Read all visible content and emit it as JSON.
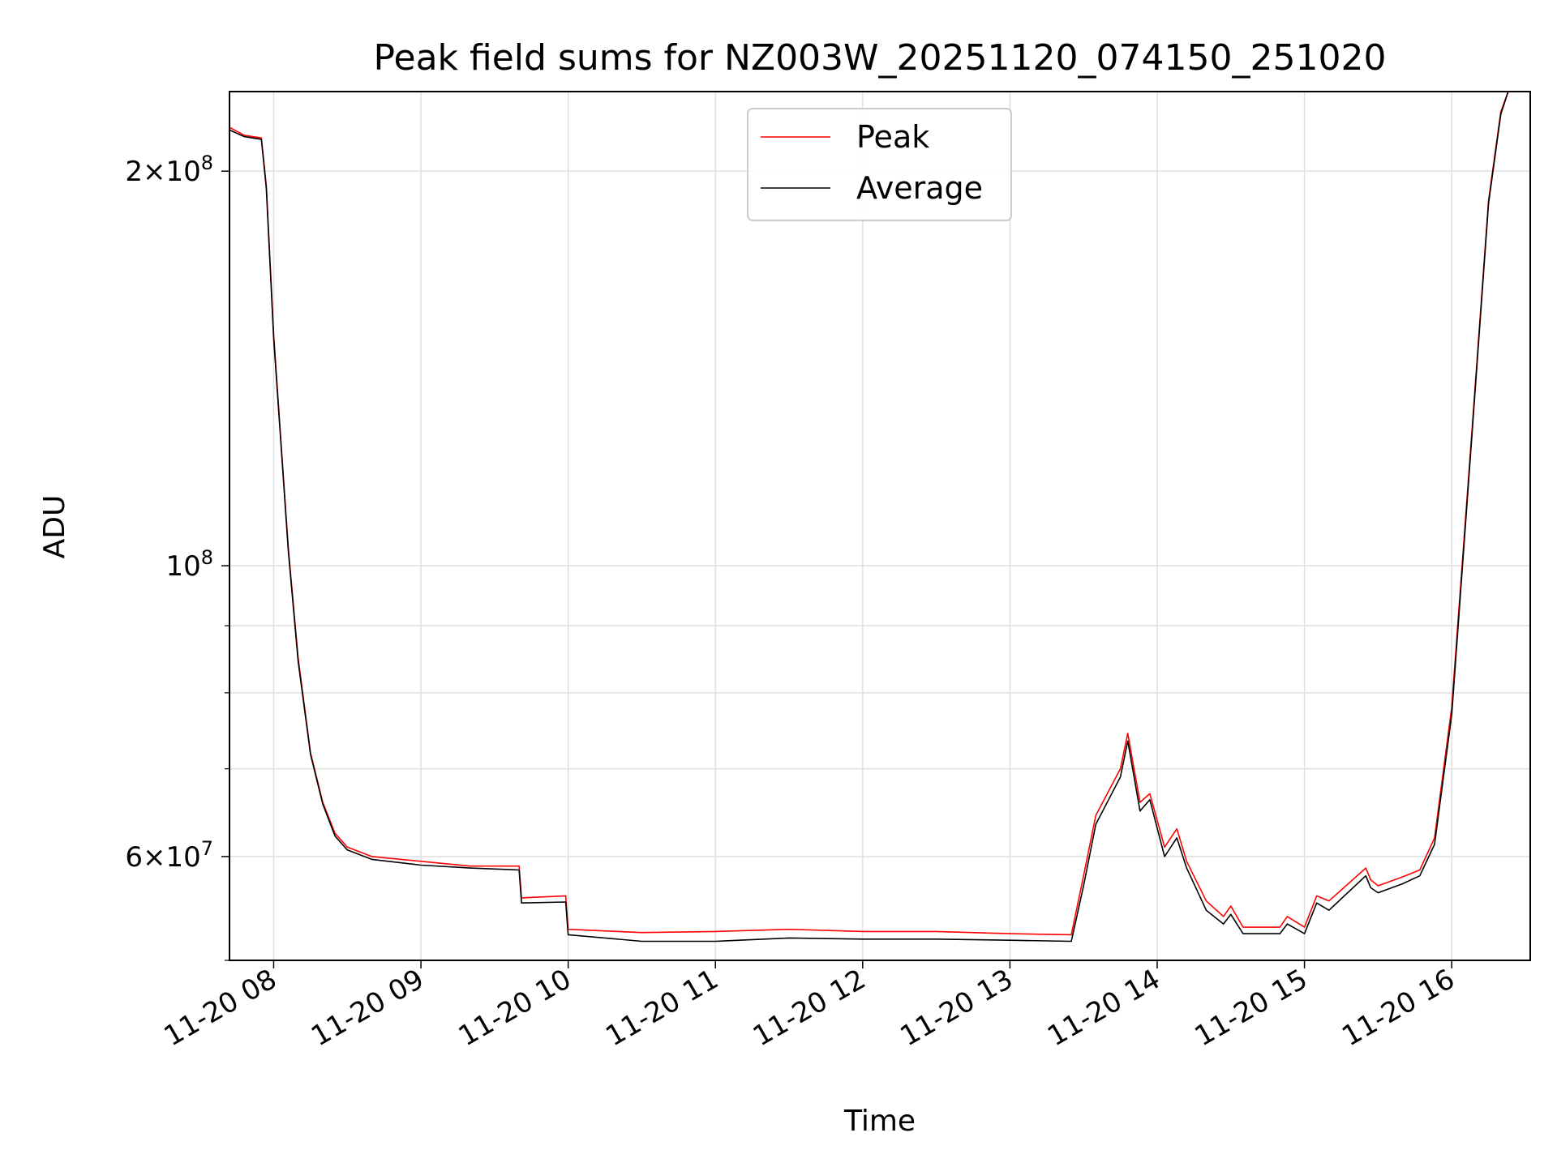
{
  "chart_data": {
    "type": "line",
    "title": "Peak field sums for NZ003W_20251120_074150_251020",
    "xlabel": "Time",
    "ylabel": "ADU",
    "y_scale": "log",
    "ylim": [
      50000000,
      230000000
    ],
    "xlim": [
      "2025-11-20 07:42",
      "2025-11-20 16:32"
    ],
    "grid": true,
    "legend_position": "top-center",
    "x_tick_labels": [
      "11-20 08",
      "11-20 09",
      "11-20 10",
      "11-20 11",
      "11-20 12",
      "11-20 13",
      "11-20 14",
      "11-20 15",
      "11-20 16"
    ],
    "x_ticks": [
      "2025-11-20 08:00",
      "2025-11-20 09:00",
      "2025-11-20 10:00",
      "2025-11-20 11:00",
      "2025-11-20 12:00",
      "2025-11-20 13:00",
      "2025-11-20 14:00",
      "2025-11-20 15:00",
      "2025-11-20 16:00"
    ],
    "y_major_ticks": [
      {
        "value": 200000000,
        "mantissa": "2",
        "exponent": "8"
      },
      {
        "value": 100000000,
        "mantissa": "",
        "exponent": "8"
      },
      {
        "value": 60000000,
        "mantissa": "6",
        "exponent": "7"
      }
    ],
    "y_minor_ticks": [
      50000000,
      70000000,
      80000000,
      90000000
    ],
    "series": [
      {
        "name": "Peak",
        "color": "#ff0000",
        "x": [
          "2025-11-20 07:42",
          "2025-11-20 07:48",
          "2025-11-20 07:55",
          "2025-11-20 07:57",
          "2025-11-20 08:00",
          "2025-11-20 08:03",
          "2025-11-20 08:06",
          "2025-11-20 08:10",
          "2025-11-20 08:15",
          "2025-11-20 08:20",
          "2025-11-20 08:25",
          "2025-11-20 08:30",
          "2025-11-20 08:40",
          "2025-11-20 09:00",
          "2025-11-20 09:20",
          "2025-11-20 09:40",
          "2025-11-20 09:41",
          "2025-11-20 09:59",
          "2025-11-20 10:00",
          "2025-11-20 10:30",
          "2025-11-20 11:00",
          "2025-11-20 11:30",
          "2025-11-20 12:00",
          "2025-11-20 12:30",
          "2025-11-20 13:00",
          "2025-11-20 13:25",
          "2025-11-20 13:30",
          "2025-11-20 13:35",
          "2025-11-20 13:45",
          "2025-11-20 13:48",
          "2025-11-20 13:50",
          "2025-11-20 13:53",
          "2025-11-20 13:57",
          "2025-11-20 14:03",
          "2025-11-20 14:08",
          "2025-11-20 14:12",
          "2025-11-20 14:20",
          "2025-11-20 14:27",
          "2025-11-20 14:30",
          "2025-11-20 14:35",
          "2025-11-20 14:50",
          "2025-11-20 14:53",
          "2025-11-20 15:00",
          "2025-11-20 15:05",
          "2025-11-20 15:10",
          "2025-11-20 15:25",
          "2025-11-20 15:27",
          "2025-11-20 15:30",
          "2025-11-20 15:40",
          "2025-11-20 15:47",
          "2025-11-20 15:53",
          "2025-11-20 16:00",
          "2025-11-20 16:08",
          "2025-11-20 16:15",
          "2025-11-20 16:20",
          "2025-11-20 16:23"
        ],
        "y": [
          216000000,
          213000000,
          212000000,
          195000000,
          150000000,
          124000000,
          103000000,
          85000000,
          72000000,
          66000000,
          62500000,
          61000000,
          60000000,
          59500000,
          59000000,
          59000000,
          55800000,
          56000000,
          52800000,
          52500000,
          52600000,
          52800000,
          52600000,
          52600000,
          52400000,
          52300000,
          58000000,
          64500000,
          70000000,
          74500000,
          71000000,
          66000000,
          67000000,
          61000000,
          63000000,
          59500000,
          55500000,
          54000000,
          55000000,
          53000000,
          53000000,
          54000000,
          53000000,
          56000000,
          55500000,
          58800000,
          57600000,
          57000000,
          57900000,
          58600000,
          62000000,
          78000000,
          125000000,
          190000000,
          222000000,
          230000000
        ]
      },
      {
        "name": "Average",
        "color": "#000000",
        "x": [
          "2025-11-20 07:42",
          "2025-11-20 07:48",
          "2025-11-20 07:55",
          "2025-11-20 07:57",
          "2025-11-20 08:00",
          "2025-11-20 08:03",
          "2025-11-20 08:06",
          "2025-11-20 08:10",
          "2025-11-20 08:15",
          "2025-11-20 08:20",
          "2025-11-20 08:25",
          "2025-11-20 08:30",
          "2025-11-20 08:40",
          "2025-11-20 09:00",
          "2025-11-20 09:20",
          "2025-11-20 09:40",
          "2025-11-20 09:41",
          "2025-11-20 09:59",
          "2025-11-20 10:00",
          "2025-11-20 10:30",
          "2025-11-20 11:00",
          "2025-11-20 11:30",
          "2025-11-20 12:00",
          "2025-11-20 12:30",
          "2025-11-20 13:00",
          "2025-11-20 13:25",
          "2025-11-20 13:30",
          "2025-11-20 13:35",
          "2025-11-20 13:45",
          "2025-11-20 13:48",
          "2025-11-20 13:50",
          "2025-11-20 13:53",
          "2025-11-20 13:57",
          "2025-11-20 14:03",
          "2025-11-20 14:08",
          "2025-11-20 14:12",
          "2025-11-20 14:20",
          "2025-11-20 14:27",
          "2025-11-20 14:30",
          "2025-11-20 14:35",
          "2025-11-20 14:50",
          "2025-11-20 14:53",
          "2025-11-20 15:00",
          "2025-11-20 15:05",
          "2025-11-20 15:10",
          "2025-11-20 15:25",
          "2025-11-20 15:27",
          "2025-11-20 15:30",
          "2025-11-20 15:40",
          "2025-11-20 15:47",
          "2025-11-20 15:53",
          "2025-11-20 16:00",
          "2025-11-20 16:08",
          "2025-11-20 16:15",
          "2025-11-20 16:20",
          "2025-11-20 16:23"
        ],
        "y": [
          215000000,
          212500000,
          211500000,
          194000000,
          149000000,
          123500000,
          102500000,
          84500000,
          71800000,
          65800000,
          62200000,
          60700000,
          59700000,
          59100000,
          58800000,
          58600000,
          55300000,
          55400000,
          52300000,
          51700000,
          51700000,
          52000000,
          51900000,
          51900000,
          51800000,
          51700000,
          57000000,
          63500000,
          69000000,
          73500000,
          70000000,
          65000000,
          66300000,
          60000000,
          62000000,
          58800000,
          54600000,
          53300000,
          54200000,
          52400000,
          52400000,
          53300000,
          52400000,
          55300000,
          54600000,
          58000000,
          56800000,
          56300000,
          57200000,
          58000000,
          61300000,
          77000000,
          124000000,
          189000000,
          221000000,
          230000000
        ]
      }
    ]
  }
}
